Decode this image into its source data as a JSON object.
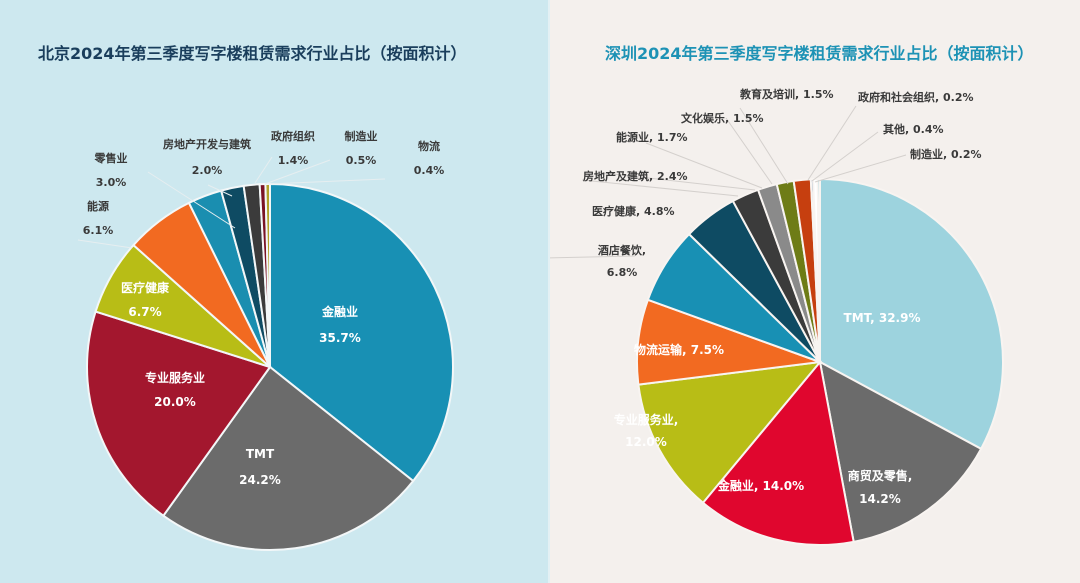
{
  "chart_data": [
    {
      "type": "pie",
      "title": "北京2024年第三季度写字楼租赁需求行业占比（按面积计）",
      "start": "12 o'clock, clockwise",
      "categories": [
        "金融业",
        "TMT",
        "专业服务业",
        "医疗健康",
        "能源",
        "零售业",
        "房地产开发与建筑",
        "政府组织",
        "制造业",
        "物流"
      ],
      "values": [
        35.7,
        24.2,
        20.0,
        6.7,
        6.1,
        3.0,
        2.0,
        1.4,
        0.5,
        0.4
      ],
      "labels": [
        "35.7%",
        "24.2%",
        "20.0%",
        "6.7%",
        "6.1%",
        "3.0%",
        "2.0%",
        "1.4%",
        "0.5%",
        "0.4%"
      ],
      "colors": [
        "#1890b4",
        "#6b6b6b",
        "#a3172e",
        "#b8bd16",
        "#f26a21",
        "#1a8eb0",
        "#0e4b63",
        "#3b3b3b",
        "#7a1224",
        "#b3a12a"
      ]
    },
    {
      "type": "pie",
      "title": "深圳2024年第三季度写字楼租赁需求行业占比（按面积计）",
      "start": "12 o'clock, clockwise",
      "categories": [
        "TMT",
        "商贸及零售",
        "金融业",
        "专业服务业",
        "物流运输",
        "酒店餐饮",
        "医疗健康",
        "房地产及建筑",
        "能源业",
        "文化娱乐",
        "教育及培训",
        "政府和社会组织",
        "其他",
        "制造业"
      ],
      "values": [
        32.9,
        14.2,
        14.0,
        12.0,
        7.5,
        6.8,
        4.8,
        2.4,
        1.7,
        1.5,
        1.5,
        0.2,
        0.4,
        0.2
      ],
      "labels": [
        "32.9%",
        "14.2%",
        "14.0%",
        "12.0%",
        "7.5%",
        "6.8%",
        "4.8%",
        "2.4%",
        "1.7%",
        "1.5%",
        "1.5%",
        "0.2%",
        "0.4%",
        "0.2%"
      ],
      "colors": [
        "#9dd3de",
        "#6b6b6b",
        "#e0062e",
        "#b8bd16",
        "#f26a21",
        "#1890b4",
        "#0e4b63",
        "#3b3b3b",
        "#8a8a8a",
        "#6e7c16",
        "#c63f0f",
        "#2a5a8a",
        "#ffffff",
        "#7fc4d2"
      ]
    }
  ],
  "left": {
    "title": "北京2024年第三季度写字楼租赁需求行业占比（按面积计）",
    "labels": {
      "finance": {
        "name": "金融业",
        "pct": "35.7%"
      },
      "tmt": {
        "name": "TMT",
        "pct": "24.2%"
      },
      "pro": {
        "name": "专业服务业",
        "pct": "20.0%"
      },
      "health": {
        "name": "医疗健康",
        "pct": "6.7%"
      },
      "energy": {
        "name": "能源",
        "pct": "6.1%"
      },
      "retail": {
        "name": "零售业",
        "pct": "3.0%"
      },
      "realestate": {
        "name": "房地产开发与建筑",
        "pct": "2.0%"
      },
      "gov": {
        "name": "政府组织",
        "pct": "1.4%"
      },
      "mfg": {
        "name": "制造业",
        "pct": "0.5%"
      },
      "logistics": {
        "name": "物流",
        "pct": "0.4%"
      }
    }
  },
  "right": {
    "title": "深圳2024年第三季度写字楼租赁需求行业占比（按面积计）",
    "labels": {
      "tmt": "TMT, 32.9%",
      "trade1": "商贸及零售,",
      "trade2": "14.2%",
      "finance": "金融业, 14.0%",
      "pro1": "专业服务业,",
      "pro2": "12.0%",
      "logistics": "物流运输, 7.5%",
      "hotel1": "酒店餐饮,",
      "hotel2": "6.8%",
      "health": "医疗健康, 4.8%",
      "realestate": "房地产及建筑, 2.4%",
      "energy": "能源业, 1.7%",
      "culture": "文化娱乐, 1.5%",
      "edu": "教育及培训, 1.5%",
      "gov": "政府和社会组织, 0.2%",
      "other": "其他, 0.4%",
      "mfg": "制造业, 0.2%"
    }
  }
}
